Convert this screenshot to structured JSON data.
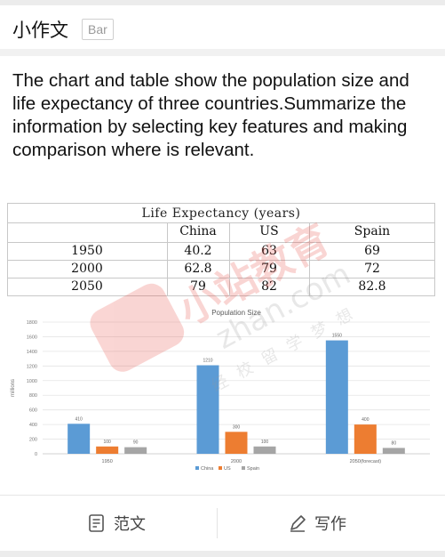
{
  "header": {
    "title": "小作文",
    "badge": "Bar"
  },
  "prompt": "The chart and table show the population size and life expectancy of three countries.Summarize the information by selecting key features and making comparison where is relevant.",
  "table": {
    "title": "Life Expectancy (years)",
    "columns": [
      "",
      "China",
      "US",
      "Spain"
    ],
    "rows": [
      [
        "1950",
        "40.2",
        "63",
        "69"
      ],
      [
        "2000",
        "62.8",
        "79",
        "72"
      ],
      [
        "2050",
        "79",
        "82",
        "82.8"
      ]
    ]
  },
  "chart_data": {
    "type": "bar",
    "title": "Population Size",
    "ylabel": "millions",
    "ylim": [
      0,
      1800
    ],
    "yticks": [
      0,
      200,
      400,
      600,
      800,
      1000,
      1200,
      1400,
      1600,
      1800
    ],
    "categories": [
      "1950",
      "2000",
      "2050(forecast)"
    ],
    "series": [
      {
        "name": "China",
        "color": "#5b9bd5",
        "values": [
          410,
          1210,
          1550
        ]
      },
      {
        "name": "US",
        "color": "#ed7d31",
        "values": [
          100,
          300,
          400
        ]
      },
      {
        "name": "Spain",
        "color": "#a5a5a5",
        "values": [
          90,
          100,
          80
        ]
      }
    ],
    "legend": "bottom",
    "grid": true
  },
  "watermark": {
    "brand": "小站教育",
    "url": "zhan.com",
    "slogan": "经 校 留 学 梦 想"
  },
  "bottom_bar": {
    "left": {
      "label": "范文",
      "icon": "document-icon"
    },
    "right": {
      "label": "写作",
      "icon": "pen-icon"
    }
  }
}
